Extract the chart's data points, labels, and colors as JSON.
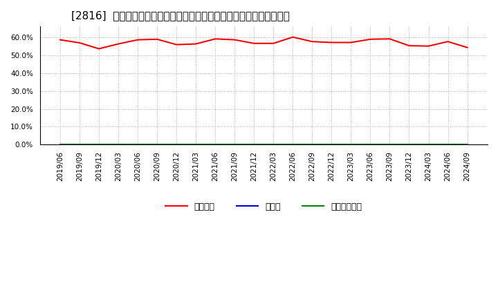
{
  "title": "[2816]  自己資本、のれん、繰延税金資産の総資産に対する比率の推移",
  "x_labels": [
    "2019/06",
    "2019/09",
    "2019/12",
    "2020/03",
    "2020/06",
    "2020/09",
    "2020/12",
    "2021/03",
    "2021/06",
    "2021/09",
    "2021/12",
    "2022/03",
    "2022/06",
    "2022/09",
    "2022/12",
    "2023/03",
    "2023/06",
    "2023/09",
    "2023/12",
    "2024/03",
    "2024/06",
    "2024/09"
  ],
  "jikoshihon": [
    58.5,
    56.8,
    53.5,
    56.2,
    58.5,
    58.8,
    55.8,
    56.2,
    59.0,
    58.5,
    56.5,
    56.5,
    60.0,
    57.5,
    57.0,
    57.0,
    58.8,
    59.0,
    55.2,
    55.0,
    57.5,
    54.2
  ],
  "noren": [
    0,
    0,
    0,
    0,
    0,
    0,
    0,
    0,
    0,
    0,
    0,
    0,
    0,
    0,
    0,
    0,
    0,
    0,
    0,
    0,
    0,
    0
  ],
  "kurinobe": [
    0,
    0,
    0,
    0,
    0,
    0,
    0,
    0,
    0,
    0,
    0,
    0,
    0,
    0,
    0,
    0,
    0,
    0,
    0,
    0,
    0,
    0
  ],
  "jikoshihon_color": "#ff0000",
  "noren_color": "#0000cc",
  "kurinobe_color": "#008800",
  "background_color": "#ffffff",
  "plot_bg_color": "#ffffff",
  "grid_color": "#aaaaaa",
  "ylim": [
    0,
    66
  ],
  "yticks": [
    0,
    10,
    20,
    30,
    40,
    50,
    60
  ],
  "legend_labels": [
    "自己資本",
    "のれん",
    "繰延税金資産"
  ],
  "title_fontsize": 11,
  "tick_fontsize": 7.5,
  "legend_fontsize": 9
}
